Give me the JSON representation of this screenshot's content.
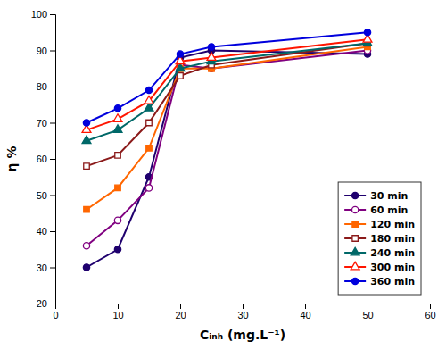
{
  "chart_data": {
    "type": "line",
    "x": [
      5,
      10,
      15,
      20,
      25,
      50
    ],
    "series": [
      {
        "name": "30 min",
        "color": "#1f006e",
        "marker": "circle",
        "values": [
          30,
          35,
          55,
          88,
          90,
          89
        ]
      },
      {
        "name": "60 min",
        "color": "#800080",
        "marker": "circle-open",
        "values": [
          36,
          43,
          52,
          86,
          85,
          90
        ]
      },
      {
        "name": "120 min",
        "color": "#ff6600",
        "marker": "square",
        "values": [
          46,
          52,
          63,
          85,
          85,
          91
        ]
      },
      {
        "name": "180 min",
        "color": "#8b1a1a",
        "marker": "square-open",
        "values": [
          58,
          61,
          70,
          83,
          86,
          92
        ]
      },
      {
        "name": "240 min",
        "color": "#006868",
        "marker": "triangle",
        "values": [
          65,
          68,
          74,
          85,
          87,
          92
        ]
      },
      {
        "name": "300 min",
        "color": "#ff1500",
        "marker": "triangle-open",
        "values": [
          68,
          71,
          76,
          87,
          88,
          93
        ]
      },
      {
        "name": "360 min",
        "color": "#0000dd",
        "marker": "circle",
        "values": [
          70,
          74,
          79,
          89,
          91,
          95
        ]
      }
    ],
    "xlabel": "Cᵢₙₕ (mg.L⁻¹)",
    "ylabel": "η %",
    "xlim": [
      0,
      60
    ],
    "xticks": [
      0,
      10,
      20,
      30,
      40,
      50,
      60
    ],
    "ylim": [
      20,
      100
    ],
    "yticks": [
      20,
      30,
      40,
      50,
      60,
      70,
      80,
      90,
      100
    ],
    "legend": "lower right"
  }
}
